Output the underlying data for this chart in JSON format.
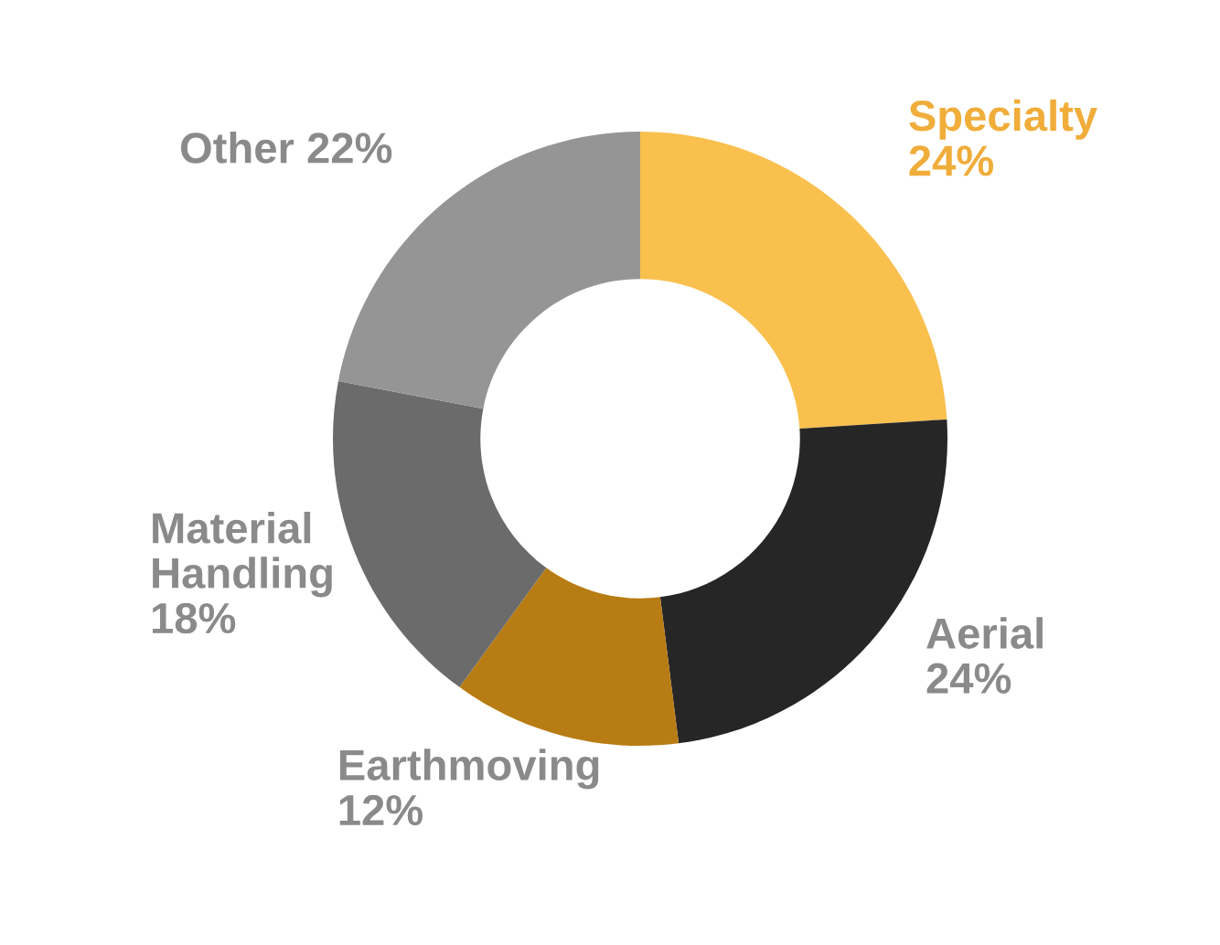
{
  "chart_data": {
    "type": "donut",
    "categories": [
      "Specialty",
      "Aerial",
      "Earthmoving",
      "Material Handling",
      "Other"
    ],
    "values": [
      24,
      24,
      12,
      18,
      22
    ],
    "colors": [
      "#f9c04e",
      "#262626",
      "#b87c14",
      "#6b6b6b",
      "#959595"
    ],
    "value_labels": [
      "24%",
      "24%",
      "12%",
      "18%",
      "22%"
    ],
    "legend": false
  }
}
